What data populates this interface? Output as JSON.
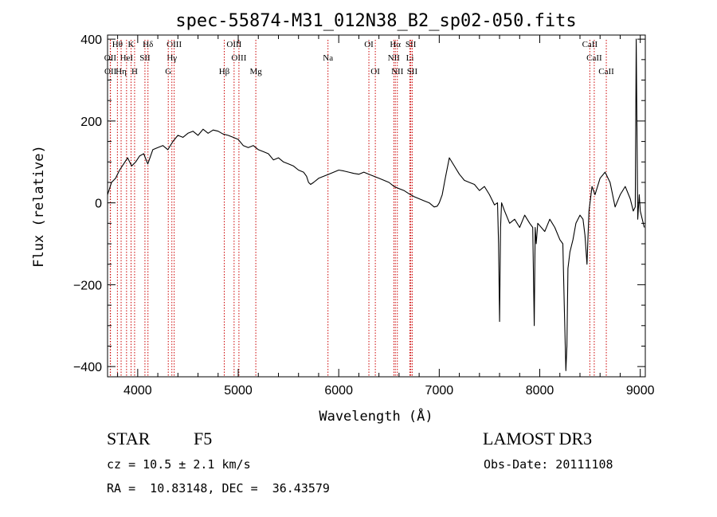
{
  "chart_data": {
    "type": "line",
    "title": "spec-55874-M31_012N38_B2_sp02-050.fits",
    "xlabel": "Wavelength (Å)",
    "ylabel": "Flux (relative)",
    "xlim": [
      3700,
      9050
    ],
    "ylim": [
      -425,
      410
    ],
    "xticks": [
      4000,
      5000,
      6000,
      7000,
      8000,
      9000
    ],
    "yticks": [
      -400,
      -200,
      0,
      200,
      400
    ],
    "xtick_labels": [
      "4000",
      "5000",
      "6000",
      "7000",
      "8000",
      "9000"
    ],
    "ytick_labels": [
      "−400",
      "−200",
      "0",
      "200",
      "400"
    ],
    "spectral_lines": [
      {
        "label": "Hθ",
        "x": 3798,
        "row": 0
      },
      {
        "label": "K",
        "x": 3934,
        "row": 0
      },
      {
        "label": "Hδ",
        "x": 4102,
        "row": 0
      },
      {
        "label": "OIII",
        "x": 4363,
        "row": 0
      },
      {
        "label": "OIII",
        "x": 4959,
        "row": 0
      },
      {
        "label": "OI",
        "x": 6300,
        "row": 0
      },
      {
        "label": "Hα",
        "x": 6563,
        "row": 0
      },
      {
        "label": "SII",
        "x": 6717,
        "row": 0
      },
      {
        "label": "CaII",
        "x": 8498,
        "row": 0
      },
      {
        "label": "OII",
        "x": 3727,
        "row": 1
      },
      {
        "label": "HeI",
        "x": 3889,
        "row": 1
      },
      {
        "label": "SII",
        "x": 4072,
        "row": 1
      },
      {
        "label": "Hγ",
        "x": 4340,
        "row": 1
      },
      {
        "label": "OIII",
        "x": 5007,
        "row": 1
      },
      {
        "label": "Na",
        "x": 5893,
        "row": 1
      },
      {
        "label": "NII",
        "x": 6548,
        "row": 1
      },
      {
        "label": "Li",
        "x": 6708,
        "row": 1
      },
      {
        "label": "CaII",
        "x": 8542,
        "row": 1
      },
      {
        "label": "OII",
        "x": 3729,
        "row": 2
      },
      {
        "label": "Hη",
        "x": 3835,
        "row": 2
      },
      {
        "label": "H",
        "x": 3969,
        "row": 2
      },
      {
        "label": "G",
        "x": 4304,
        "row": 2
      },
      {
        "label": "Hβ",
        "x": 4861,
        "row": 2
      },
      {
        "label": "Mg",
        "x": 5175,
        "row": 2
      },
      {
        "label": "OI",
        "x": 6364,
        "row": 2
      },
      {
        "label": "NII",
        "x": 6583,
        "row": 2
      },
      {
        "label": "SII",
        "x": 6731,
        "row": 2
      },
      {
        "label": "CaII",
        "x": 8662,
        "row": 2
      }
    ],
    "series": [
      {
        "color": "#000000",
        "x": [
          3700,
          3740,
          3780,
          3820,
          3860,
          3900,
          3940,
          3980,
          4020,
          4060,
          4100,
          4150,
          4200,
          4250,
          4300,
          4350,
          4400,
          4450,
          4500,
          4550,
          4600,
          4650,
          4700,
          4750,
          4800,
          4850,
          4900,
          4950,
          5000,
          5050,
          5100,
          5150,
          5200,
          5250,
          5300,
          5350,
          5400,
          5450,
          5500,
          5550,
          5600,
          5650,
          5680,
          5700,
          5720,
          5750,
          5800,
          5850,
          5900,
          5950,
          6000,
          6050,
          6100,
          6150,
          6200,
          6250,
          6300,
          6350,
          6400,
          6450,
          6500,
          6550,
          6600,
          6650,
          6700,
          6750,
          6800,
          6850,
          6900,
          6950,
          6980,
          7000,
          7030,
          7060,
          7100,
          7150,
          7200,
          7250,
          7300,
          7350,
          7400,
          7450,
          7500,
          7550,
          7580,
          7590,
          7600,
          7610,
          7620,
          7650,
          7700,
          7750,
          7800,
          7850,
          7900,
          7930,
          7945,
          7955,
          7965,
          7980,
          8050,
          8100,
          8150,
          8200,
          8230,
          8245,
          8260,
          8270,
          8280,
          8300,
          8330,
          8360,
          8400,
          8430,
          8450,
          8470,
          8490,
          8500,
          8520,
          8550,
          8600,
          8650,
          8700,
          8750,
          8800,
          8850,
          8900,
          8930,
          8950,
          8960,
          8975,
          8990,
          9000,
          9020,
          9040
        ],
        "values": [
          20,
          50,
          60,
          80,
          95,
          110,
          90,
          100,
          115,
          120,
          95,
          130,
          135,
          140,
          130,
          150,
          165,
          160,
          170,
          175,
          165,
          180,
          170,
          178,
          175,
          168,
          165,
          160,
          155,
          140,
          135,
          140,
          130,
          125,
          120,
          105,
          110,
          100,
          95,
          90,
          80,
          75,
          65,
          50,
          45,
          50,
          60,
          65,
          70,
          75,
          80,
          78,
          75,
          72,
          70,
          75,
          70,
          65,
          60,
          55,
          50,
          40,
          35,
          30,
          22,
          15,
          10,
          5,
          0,
          -10,
          -8,
          0,
          20,
          60,
          110,
          90,
          70,
          55,
          50,
          45,
          30,
          40,
          20,
          -5,
          0,
          -100,
          -290,
          -60,
          0,
          -20,
          -50,
          -40,
          -60,
          -30,
          -50,
          -60,
          -300,
          -60,
          -100,
          -50,
          -70,
          -40,
          -60,
          -90,
          -100,
          -260,
          -410,
          -350,
          -160,
          -120,
          -90,
          -50,
          -30,
          -40,
          -80,
          -150,
          -20,
          0,
          40,
          20,
          60,
          75,
          50,
          -10,
          20,
          40,
          10,
          -20,
          -10,
          400,
          -40,
          20,
          -20,
          -40,
          -60
        ]
      }
    ]
  },
  "info": {
    "object_type": "STAR",
    "subclass": "F5",
    "survey": "LAMOST DR3",
    "cz": "cz = 10.5 ± 2.1 km/s",
    "obs_date": "Obs-Date: 20111108",
    "radec": "RA =  10.83148, DEC =  36.43579"
  },
  "colors": {
    "spectrum": "#000000",
    "line_markers": "#cc0000",
    "background": "#ffffff"
  }
}
